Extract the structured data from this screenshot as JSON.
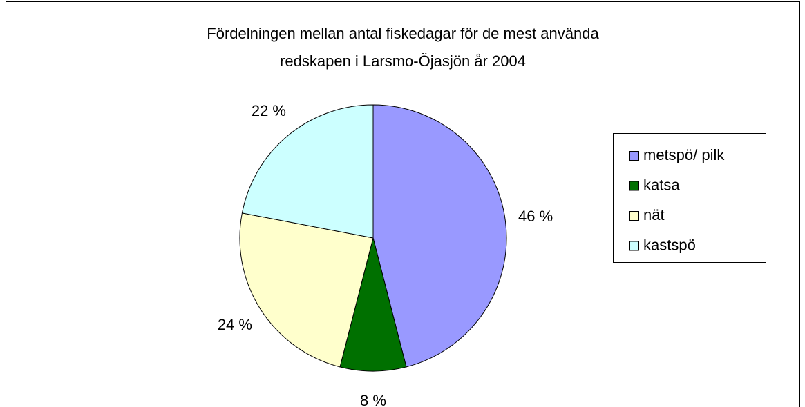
{
  "chart_data": {
    "type": "pie",
    "title": [
      "Fördelningen mellan antal fiskedagar för de mest använda",
      "redskapen i Larsmo-Öjasjön år 2004"
    ],
    "categories": [
      "metspö/ pilk",
      "katsa",
      "nät",
      "kastspö"
    ],
    "values": [
      46,
      8,
      24,
      22
    ],
    "value_labels": [
      "46 %",
      "8 %",
      "24 %",
      "22 %"
    ],
    "colors": [
      "#9999ff",
      "#007000",
      "#ffffcc",
      "#ccffff"
    ],
    "legend": "right"
  }
}
